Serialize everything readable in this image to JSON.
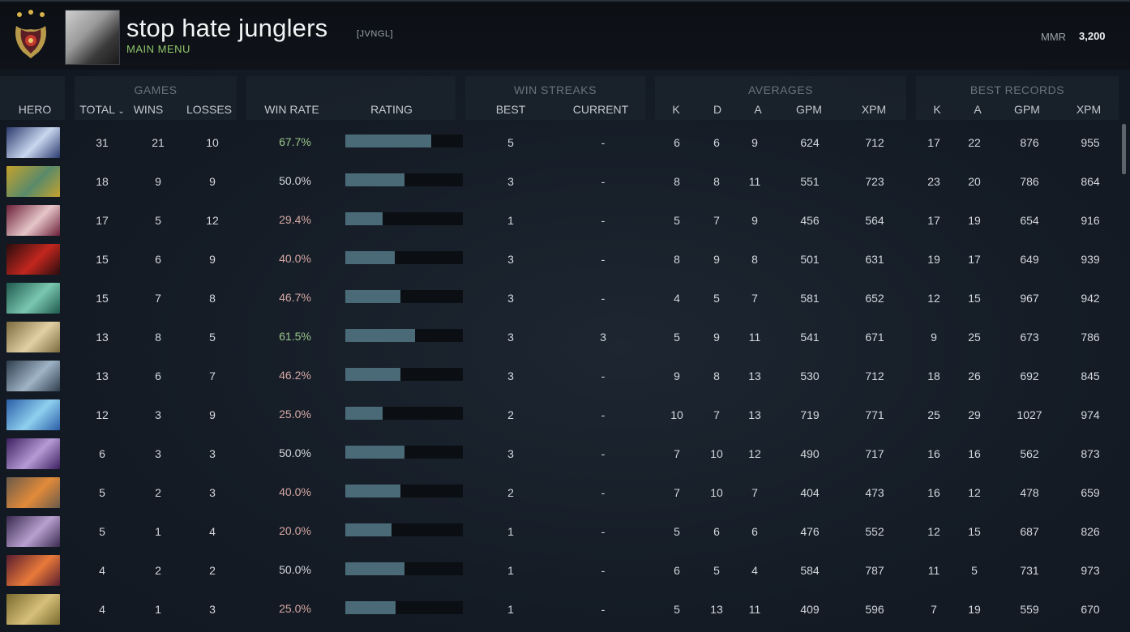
{
  "header": {
    "player_name": "stop hate junglers",
    "team_tag": "[JVNGL]",
    "menu_label": "MAIN MENU",
    "mmr_label": "MMR",
    "mmr_value": "3,200"
  },
  "groups": {
    "games": "GAMES",
    "win_streaks": "WIN STREAKS",
    "averages": "AVERAGES",
    "best_records": "BEST RECORDS"
  },
  "columns": {
    "hero": "HERO",
    "total": "TOTAL",
    "wins": "WINS",
    "losses": "LOSSES",
    "win_rate": "WIN RATE",
    "rating": "RATING",
    "best": "BEST",
    "current": "CURRENT",
    "avg_k": "K",
    "avg_d": "D",
    "avg_a": "A",
    "avg_gpm": "GPM",
    "avg_xpm": "XPM",
    "best_k": "K",
    "best_a": "A",
    "best_gpm": "GPM",
    "best_xpm": "XPM"
  },
  "rows": [
    {
      "hero_icon": "luna-portrait-icon",
      "colors": [
        "#2b3b6e",
        "#c9d6ef"
      ],
      "total": "31",
      "wins": "21",
      "losses": "10",
      "win_rate": "67.7%",
      "rating": 0.73,
      "best_streak": "5",
      "current_streak": "-",
      "k": "6",
      "d": "6",
      "a": "9",
      "gpm": "624",
      "xpm": "712",
      "best_k": "17",
      "best_a": "22",
      "best_gpm": "876",
      "best_xpm": "955"
    },
    {
      "hero_icon": "hoodwink-portrait-icon",
      "colors": [
        "#c4a22c",
        "#5a8a6a"
      ],
      "total": "18",
      "wins": "9",
      "losses": "9",
      "win_rate": "50.0%",
      "rating": 0.5,
      "best_streak": "3",
      "current_streak": "-",
      "k": "8",
      "d": "8",
      "a": "11",
      "gpm": "551",
      "xpm": "723",
      "best_k": "23",
      "best_a": "20",
      "best_gpm": "786",
      "best_xpm": "864"
    },
    {
      "hero_icon": "invoker-portrait-icon",
      "colors": [
        "#6b1f3a",
        "#e6c6c8"
      ],
      "total": "17",
      "wins": "5",
      "losses": "12",
      "win_rate": "29.4%",
      "rating": 0.32,
      "best_streak": "1",
      "current_streak": "-",
      "k": "5",
      "d": "7",
      "a": "9",
      "gpm": "456",
      "xpm": "564",
      "best_k": "17",
      "best_a": "19",
      "best_gpm": "654",
      "best_xpm": "916"
    },
    {
      "hero_icon": "shadow-fiend-portrait-icon",
      "colors": [
        "#2a0c0e",
        "#c2271e"
      ],
      "total": "15",
      "wins": "6",
      "losses": "9",
      "win_rate": "40.0%",
      "rating": 0.42,
      "best_streak": "3",
      "current_streak": "-",
      "k": "8",
      "d": "9",
      "a": "8",
      "gpm": "501",
      "xpm": "631",
      "best_k": "19",
      "best_a": "17",
      "best_gpm": "649",
      "best_xpm": "939"
    },
    {
      "hero_icon": "wraith-king-portrait-icon",
      "colors": [
        "#1f5a4e",
        "#7ac7b0"
      ],
      "total": "15",
      "wins": "7",
      "losses": "8",
      "win_rate": "46.7%",
      "rating": 0.47,
      "best_streak": "3",
      "current_streak": "-",
      "k": "4",
      "d": "5",
      "a": "7",
      "gpm": "581",
      "xpm": "652",
      "best_k": "12",
      "best_a": "15",
      "best_gpm": "967",
      "best_xpm": "942"
    },
    {
      "hero_icon": "omniknight-portrait-icon",
      "colors": [
        "#7a6a3e",
        "#e0d0a4"
      ],
      "total": "13",
      "wins": "8",
      "losses": "5",
      "win_rate": "61.5%",
      "rating": 0.59,
      "best_streak": "3",
      "current_streak": "3",
      "k": "5",
      "d": "9",
      "a": "11",
      "gpm": "541",
      "xpm": "671",
      "best_k": "9",
      "best_a": "25",
      "best_gpm": "673",
      "best_xpm": "786"
    },
    {
      "hero_icon": "void-spirit-portrait-icon",
      "colors": [
        "#2f3e4e",
        "#9fb4c6"
      ],
      "total": "13",
      "wins": "6",
      "losses": "7",
      "win_rate": "46.2%",
      "rating": 0.47,
      "best_streak": "3",
      "current_streak": "-",
      "k": "9",
      "d": "8",
      "a": "13",
      "gpm": "530",
      "xpm": "712",
      "best_k": "18",
      "best_a": "26",
      "best_gpm": "692",
      "best_xpm": "845"
    },
    {
      "hero_icon": "puck-portrait-icon",
      "colors": [
        "#2a5ea8",
        "#8fd0ef"
      ],
      "total": "12",
      "wins": "3",
      "losses": "9",
      "win_rate": "25.0%",
      "rating": 0.32,
      "best_streak": "2",
      "current_streak": "-",
      "k": "10",
      "d": "7",
      "a": "13",
      "gpm": "719",
      "xpm": "771",
      "best_k": "25",
      "best_a": "29",
      "best_gpm": "1027",
      "best_xpm": "974"
    },
    {
      "hero_icon": "faceless-void-portrait-icon",
      "colors": [
        "#3c2060",
        "#b59ad6"
      ],
      "total": "6",
      "wins": "3",
      "losses": "3",
      "win_rate": "50.0%",
      "rating": 0.5,
      "best_streak": "3",
      "current_streak": "-",
      "k": "7",
      "d": "10",
      "a": "12",
      "gpm": "490",
      "xpm": "717",
      "best_k": "16",
      "best_a": "16",
      "best_gpm": "562",
      "best_xpm": "873"
    },
    {
      "hero_icon": "tinker-portrait-icon",
      "colors": [
        "#6a5a4a",
        "#e28a3a"
      ],
      "total": "5",
      "wins": "2",
      "losses": "3",
      "win_rate": "40.0%",
      "rating": 0.47,
      "best_streak": "2",
      "current_streak": "-",
      "k": "7",
      "d": "10",
      "a": "7",
      "gpm": "404",
      "xpm": "473",
      "best_k": "16",
      "best_a": "12",
      "best_gpm": "478",
      "best_xpm": "659"
    },
    {
      "hero_icon": "templar-assassin-portrait-icon",
      "colors": [
        "#3a2a4e",
        "#b8a0d0"
      ],
      "total": "5",
      "wins": "1",
      "losses": "4",
      "win_rate": "20.0%",
      "rating": 0.39,
      "best_streak": "1",
      "current_streak": "-",
      "k": "5",
      "d": "6",
      "a": "6",
      "gpm": "476",
      "xpm": "552",
      "best_k": "12",
      "best_a": "15",
      "best_gpm": "687",
      "best_xpm": "826"
    },
    {
      "hero_icon": "anti-mage-portrait-icon",
      "colors": [
        "#5a1c2e",
        "#e87a3a"
      ],
      "total": "4",
      "wins": "2",
      "losses": "2",
      "win_rate": "50.0%",
      "rating": 0.5,
      "best_streak": "1",
      "current_streak": "-",
      "k": "6",
      "d": "5",
      "a": "4",
      "gpm": "584",
      "xpm": "787",
      "best_k": "11",
      "best_a": "5",
      "best_gpm": "731",
      "best_xpm": "973"
    },
    {
      "hero_icon": "earthshaker-portrait-icon",
      "colors": [
        "#7a6a2e",
        "#d6c07a"
      ],
      "total": "4",
      "wins": "1",
      "losses": "3",
      "win_rate": "25.0%",
      "rating": 0.43,
      "best_streak": "1",
      "current_streak": "-",
      "k": "5",
      "d": "13",
      "a": "11",
      "gpm": "409",
      "xpm": "596",
      "best_k": "7",
      "best_a": "19",
      "best_gpm": "559",
      "best_xpm": "670"
    }
  ]
}
